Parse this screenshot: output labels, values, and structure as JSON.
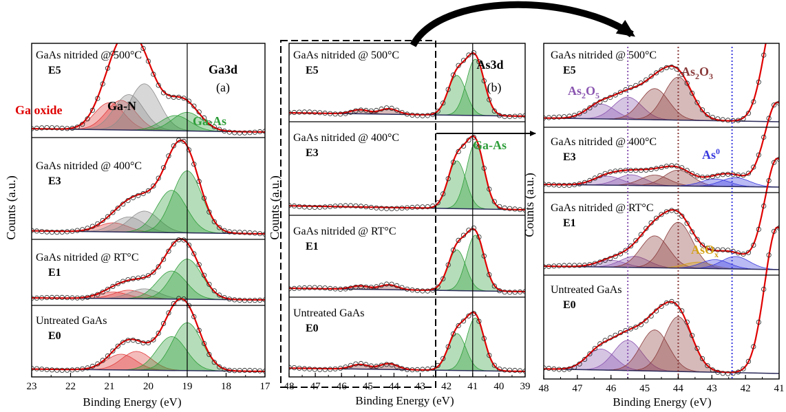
{
  "axes": {
    "ylabel": "Counts (a.u.)",
    "xlabel": "Binding Energy (eV)"
  },
  "colors": {
    "fit": "#e00000",
    "ga_oxide": "#e03c3c",
    "ga_n": "#8c8c8c",
    "ga_as": "#2e9e3a",
    "as2o5": "#8a55b0",
    "as2o3": "#8a3a3a",
    "as0": "#3a3adf",
    "asox": "#d4a017",
    "background": "#2a2a5a"
  },
  "chart_data": [
    {
      "type": "line",
      "panel": "(a)",
      "title": "Ga3d",
      "xlim": [
        23,
        17
      ],
      "xticks": [
        "23",
        "22",
        "21",
        "20",
        "19",
        "18",
        "17"
      ],
      "ylabel": "Counts (a.u.)",
      "xlabel": "Binding Energy (eV)",
      "annotations": [
        "Ga oxide",
        "Ga-N",
        "Ga-As"
      ],
      "reference_line_x": 19.0,
      "series": [
        {
          "name": "GaAs nitrided @ 500°C",
          "tag": "E5",
          "peaks": [
            {
              "component": "Ga oxide",
              "center": 21.0,
              "height": 0.32
            },
            {
              "component": "Ga oxide",
              "center": 20.7,
              "height": 0.35
            },
            {
              "component": "Ga-N",
              "center": 20.5,
              "height": 0.42
            },
            {
              "component": "Ga-N",
              "center": 20.1,
              "height": 0.55
            },
            {
              "component": "Ga-As",
              "center": 19.3,
              "height": 0.18
            },
            {
              "component": "Ga-As",
              "center": 19.0,
              "height": 0.22
            }
          ]
        },
        {
          "name": "GaAs nitrided @ 400°C",
          "tag": "E3",
          "peaks": [
            {
              "component": "Ga oxide",
              "center": 20.9,
              "height": 0.12
            },
            {
              "component": "Ga-N",
              "center": 20.5,
              "height": 0.2
            },
            {
              "component": "Ga-N",
              "center": 20.1,
              "height": 0.28
            },
            {
              "component": "Ga-As",
              "center": 19.4,
              "height": 0.56
            },
            {
              "component": "Ga-As",
              "center": 19.0,
              "height": 0.82
            }
          ]
        },
        {
          "name": "GaAs nitrided @ RT°C",
          "tag": "E1",
          "peaks": [
            {
              "component": "Ga oxide",
              "center": 20.9,
              "height": 0.13
            },
            {
              "component": "Ga oxide",
              "center": 20.5,
              "height": 0.17
            },
            {
              "component": "Ga-N",
              "center": 20.1,
              "height": 0.2
            },
            {
              "component": "Ga-As",
              "center": 19.4,
              "height": 0.56
            },
            {
              "component": "Ga-As",
              "center": 19.0,
              "height": 0.8
            }
          ]
        },
        {
          "name": "Untreated GaAs",
          "tag": "E0",
          "peaks": [
            {
              "component": "Ga oxide",
              "center": 20.7,
              "height": 0.27
            },
            {
              "component": "Ga oxide",
              "center": 20.3,
              "height": 0.32
            },
            {
              "component": "Ga-As",
              "center": 19.4,
              "height": 0.58
            },
            {
              "component": "Ga-As",
              "center": 19.0,
              "height": 0.82
            }
          ]
        }
      ]
    },
    {
      "type": "line",
      "panel": "(b)",
      "title": "As3d",
      "xlim": [
        48,
        39
      ],
      "xticks": [
        "48",
        "47",
        "46",
        "45",
        "44",
        "43",
        "42",
        "41",
        "40",
        "39"
      ],
      "ylabel": "Counts (a.u.)",
      "xlabel": "Binding Energy (eV)",
      "annotations": [
        "Ga-As"
      ],
      "reference_line_x": 41.0,
      "series": [
        {
          "name": "GaAs nitrided @ 500°C",
          "tag": "E5",
          "peaks": [
            {
              "component": "As oxide",
              "center": 44.2,
              "height": 0.08
            },
            {
              "component": "As oxide",
              "center": 45.3,
              "height": 0.06
            },
            {
              "component": "Ga-As",
              "center": 41.6,
              "height": 0.58
            },
            {
              "component": "Ga-As",
              "center": 40.9,
              "height": 0.82
            }
          ]
        },
        {
          "name": "GaAs nitrided @ 400°C",
          "tag": "E3",
          "peaks": [
            {
              "component": "Ga-As",
              "center": 41.6,
              "height": 0.6
            },
            {
              "component": "Ga-As",
              "center": 40.9,
              "height": 0.82
            }
          ]
        },
        {
          "name": "GaAs nitrided @ RT°C",
          "tag": "E1",
          "peaks": [
            {
              "component": "As oxide",
              "center": 44.2,
              "height": 0.07
            },
            {
              "component": "As oxide",
              "center": 45.3,
              "height": 0.05
            },
            {
              "component": "Ga-As",
              "center": 41.6,
              "height": 0.6
            },
            {
              "component": "Ga-As",
              "center": 40.9,
              "height": 0.82
            }
          ]
        },
        {
          "name": "Untreated GaAs",
          "tag": "E0",
          "peaks": [
            {
              "component": "As oxide",
              "center": 44.2,
              "height": 0.09
            },
            {
              "component": "As oxide",
              "center": 45.3,
              "height": 0.07
            },
            {
              "component": "Ga-As",
              "center": 41.6,
              "height": 0.56
            },
            {
              "component": "Ga-As",
              "center": 40.9,
              "height": 0.8
            }
          ]
        }
      ]
    },
    {
      "type": "line",
      "panel": "zoom",
      "title": "",
      "xlim": [
        48,
        41
      ],
      "xticks": [
        "48",
        "47",
        "46",
        "45",
        "44",
        "43",
        "42",
        "41"
      ],
      "ylabel": "Counts (a.u.)",
      "xlabel": "Binding Energy (eV)",
      "annotations": [
        "As2O5",
        "As2O3",
        "As0",
        "AsOx"
      ],
      "reference_lines_x": [
        45.5,
        44.0,
        42.4
      ],
      "series": [
        {
          "name": "GaAs nitrided @ 500°C",
          "tag": "E5",
          "peaks": [
            {
              "component": "As2O5",
              "center": 46.3,
              "height": 0.2
            },
            {
              "component": "As2O5",
              "center": 45.5,
              "height": 0.3
            },
            {
              "component": "As2O3",
              "center": 44.7,
              "height": 0.42
            },
            {
              "component": "As2O3",
              "center": 44.0,
              "height": 0.58
            }
          ]
        },
        {
          "name": "GaAs nitrided @ 400°C",
          "tag": "E3",
          "peaks": [
            {
              "component": "As2O5",
              "center": 46.1,
              "height": 0.17
            },
            {
              "component": "As2O5",
              "center": 45.4,
              "height": 0.2
            },
            {
              "component": "As2O3",
              "center": 44.7,
              "height": 0.2
            },
            {
              "component": "As2O3",
              "center": 44.0,
              "height": 0.3
            },
            {
              "component": "As0",
              "center": 42.9,
              "height": 0.14
            },
            {
              "component": "As0",
              "center": 42.3,
              "height": 0.17
            }
          ]
        },
        {
          "name": "GaAs nitrided @ RT°C",
          "tag": "E1",
          "peaks": [
            {
              "component": "As2O5",
              "center": 46.0,
              "height": 0.1
            },
            {
              "component": "As2O5",
              "center": 45.3,
              "height": 0.16
            },
            {
              "component": "As2O3",
              "center": 44.7,
              "height": 0.46
            },
            {
              "component": "As2O3",
              "center": 44.0,
              "height": 0.66
            },
            {
              "component": "AsOx",
              "center": 43.4,
              "height": 0.09
            },
            {
              "component": "As0",
              "center": 42.9,
              "height": 0.13
            },
            {
              "component": "As0",
              "center": 42.3,
              "height": 0.18
            }
          ]
        },
        {
          "name": "Untreated GaAs",
          "tag": "E0",
          "peaks": [
            {
              "component": "As2O5",
              "center": 46.3,
              "height": 0.23
            },
            {
              "component": "As2O5",
              "center": 45.5,
              "height": 0.33
            },
            {
              "component": "As2O3",
              "center": 44.7,
              "height": 0.45
            },
            {
              "component": "As2O3",
              "center": 44.0,
              "height": 0.6
            }
          ]
        }
      ]
    }
  ]
}
